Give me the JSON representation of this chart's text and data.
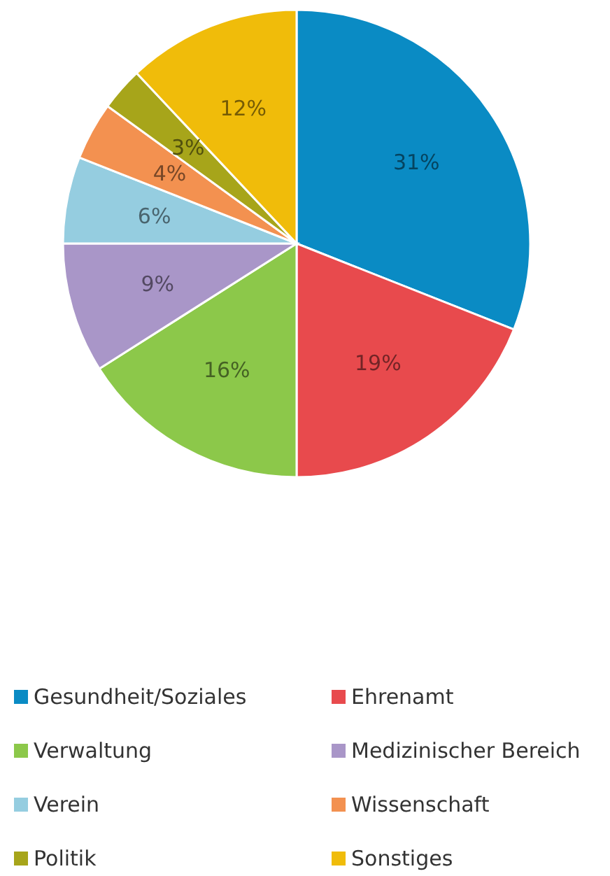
{
  "chart_data": {
    "type": "pie",
    "categories": [
      "Gesundheit/Soziales",
      "Ehrenamt",
      "Verwaltung",
      "Medizinischer Bereich",
      "Verein",
      "Wissenschaft",
      "Politik",
      "Sonstiges"
    ],
    "values": [
      31,
      19,
      16,
      9,
      6,
      4,
      3,
      12
    ],
    "colors": [
      "#0a8bc4",
      "#e84a4d",
      "#8cc84a",
      "#a996c8",
      "#95cde0",
      "#f39150",
      "#a7a51a",
      "#f0bc0a"
    ],
    "value_labels": [
      "31%",
      "19%",
      "16%",
      "9%",
      "6%",
      "4%",
      "3%",
      "12%"
    ],
    "legend": "bottom"
  }
}
